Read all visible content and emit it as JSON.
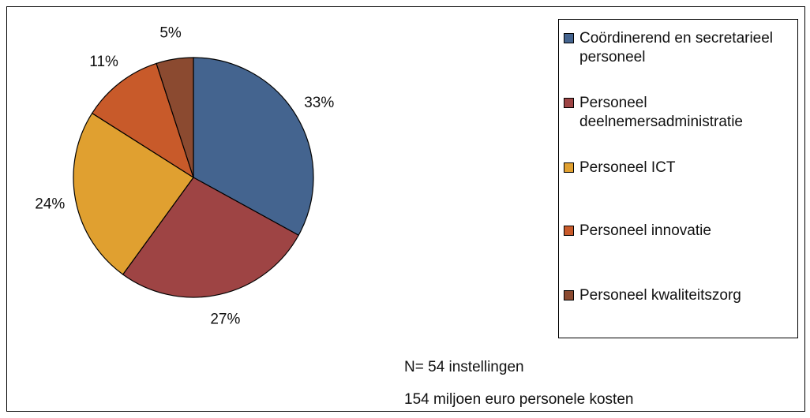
{
  "chart_data": {
    "type": "pie",
    "categories": [
      "Coördinerend en secretarieel personeel",
      "Personeel deelnemersadministratie",
      "Personeel ICT",
      "Personeel innovatie",
      "Personeel kwaliteitszorg"
    ],
    "values": [
      33,
      27,
      24,
      11,
      5
    ],
    "value_labels": [
      "33%",
      "27%",
      "24%",
      "11%",
      "5%"
    ],
    "colors": [
      "#44648f",
      "#9e4444",
      "#e0a030",
      "#c85a2a",
      "#8b4a30"
    ],
    "annotations": [
      "N= 54 instellingen",
      "154 miljoen euro personele kosten"
    ]
  }
}
